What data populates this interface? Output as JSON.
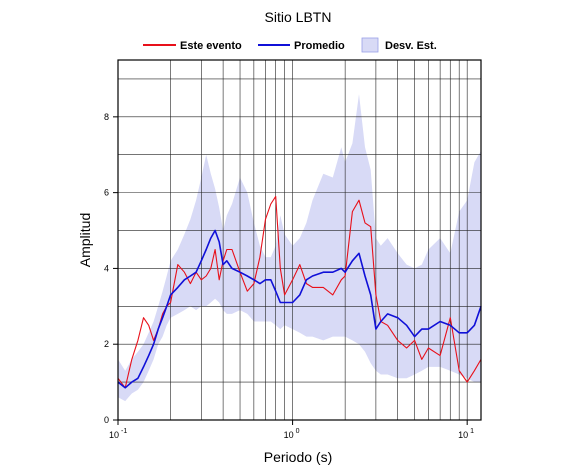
{
  "chart_data": {
    "type": "line",
    "title": "Sitio LBTN",
    "xlabel": "Periodo (s)",
    "ylabel": "Amplitud",
    "x_scale": "log",
    "xlim": [
      0.1,
      12
    ],
    "ylim": [
      0,
      9.5
    ],
    "grid": true,
    "legend_position": "top",
    "x_ticks": [
      {
        "base": "10",
        "exp": "-1",
        "value": 0.1
      },
      {
        "base": "10",
        "exp": "0",
        "value": 1
      },
      {
        "base": "10",
        "exp": "1",
        "value": 10
      }
    ],
    "y_ticks": [
      "0",
      "2",
      "4",
      "6",
      "8"
    ],
    "y_tick_values": [
      0,
      2,
      4,
      6,
      8
    ],
    "legend": {
      "event_label": "Este evento",
      "mean_label": "Promedio",
      "std_label": "Desv. Est."
    },
    "colors": {
      "event": "#e8101a",
      "mean": "#1010d8",
      "std_band": "#d8daf6"
    },
    "x": [
      0.1,
      0.11,
      0.12,
      0.13,
      0.14,
      0.15,
      0.16,
      0.17,
      0.18,
      0.19,
      0.2,
      0.22,
      0.24,
      0.26,
      0.28,
      0.3,
      0.32,
      0.34,
      0.36,
      0.38,
      0.4,
      0.42,
      0.45,
      0.5,
      0.55,
      0.6,
      0.65,
      0.7,
      0.75,
      0.8,
      0.85,
      0.9,
      1.0,
      1.1,
      1.2,
      1.3,
      1.5,
      1.7,
      1.9,
      2.0,
      2.2,
      2.4,
      2.6,
      2.8,
      3.0,
      3.2,
      3.5,
      4.0,
      4.5,
      5.0,
      5.5,
      6.0,
      7.0,
      8.0,
      9.0,
      10.0,
      11.0,
      12.0
    ],
    "series": [
      {
        "name": "Este evento",
        "values": [
          1.1,
          0.85,
          1.6,
          2.1,
          2.7,
          2.5,
          2.1,
          2.4,
          2.8,
          3.0,
          3.1,
          4.1,
          3.9,
          3.6,
          3.9,
          3.7,
          3.8,
          4.0,
          4.5,
          3.7,
          4.2,
          4.5,
          4.5,
          3.9,
          3.4,
          3.6,
          4.3,
          5.3,
          5.7,
          5.9,
          4.0,
          3.3,
          3.7,
          4.1,
          3.6,
          3.5,
          3.5,
          3.3,
          3.7,
          3.8,
          5.5,
          5.8,
          5.2,
          5.1,
          3.3,
          2.6,
          2.5,
          2.1,
          1.9,
          2.1,
          1.6,
          1.9,
          1.7,
          2.7,
          1.3,
          1.0,
          1.3,
          1.6
        ]
      },
      {
        "name": "Promedio",
        "values": [
          1.0,
          0.85,
          1.0,
          1.1,
          1.4,
          1.7,
          2.0,
          2.4,
          2.7,
          3.0,
          3.3,
          3.5,
          3.7,
          3.8,
          3.9,
          4.2,
          4.5,
          4.8,
          5.0,
          4.7,
          4.1,
          4.2,
          4.0,
          3.9,
          3.8,
          3.7,
          3.6,
          3.7,
          3.7,
          3.4,
          3.1,
          3.1,
          3.1,
          3.3,
          3.7,
          3.8,
          3.9,
          3.9,
          4.0,
          3.9,
          4.2,
          4.4,
          3.8,
          3.3,
          2.4,
          2.6,
          2.8,
          2.7,
          2.5,
          2.2,
          2.4,
          2.4,
          2.6,
          2.5,
          2.3,
          2.3,
          2.5,
          3.0
        ]
      }
    ],
    "std_band": {
      "upper": [
        1.6,
        1.3,
        1.6,
        1.8,
        2.0,
        2.3,
        2.6,
        3.0,
        3.4,
        3.8,
        4.2,
        4.5,
        4.9,
        5.3,
        5.8,
        6.4,
        7.0,
        6.5,
        6.1,
        5.6,
        5.0,
        5.4,
        5.7,
        6.4,
        6.0,
        5.2,
        4.6,
        4.3,
        4.3,
        4.6,
        5.4,
        4.9,
        4.6,
        4.8,
        5.2,
        5.8,
        6.5,
        6.4,
        7.2,
        6.8,
        7.3,
        8.6,
        7.2,
        6.6,
        4.8,
        4.6,
        4.8,
        4.4,
        4.1,
        4.0,
        4.1,
        4.5,
        4.8,
        4.4,
        5.5,
        5.8,
        6.8,
        7.1
      ],
      "lower": [
        0.6,
        0.5,
        0.7,
        0.8,
        1.0,
        1.3,
        1.6,
        2.0,
        2.2,
        2.5,
        2.7,
        2.8,
        2.9,
        3.0,
        2.9,
        3.0,
        3.0,
        3.1,
        3.2,
        3.1,
        2.9,
        2.8,
        2.8,
        2.9,
        2.8,
        2.6,
        2.6,
        2.6,
        2.6,
        2.5,
        2.4,
        2.5,
        2.4,
        2.3,
        2.2,
        2.2,
        2.1,
        2.2,
        2.2,
        2.2,
        2.1,
        2.0,
        1.8,
        1.5,
        1.3,
        1.2,
        1.2,
        1.1,
        1.1,
        1.2,
        1.3,
        1.4,
        1.4,
        1.3,
        1.2,
        1.1,
        1.0,
        1.0
      ]
    }
  }
}
